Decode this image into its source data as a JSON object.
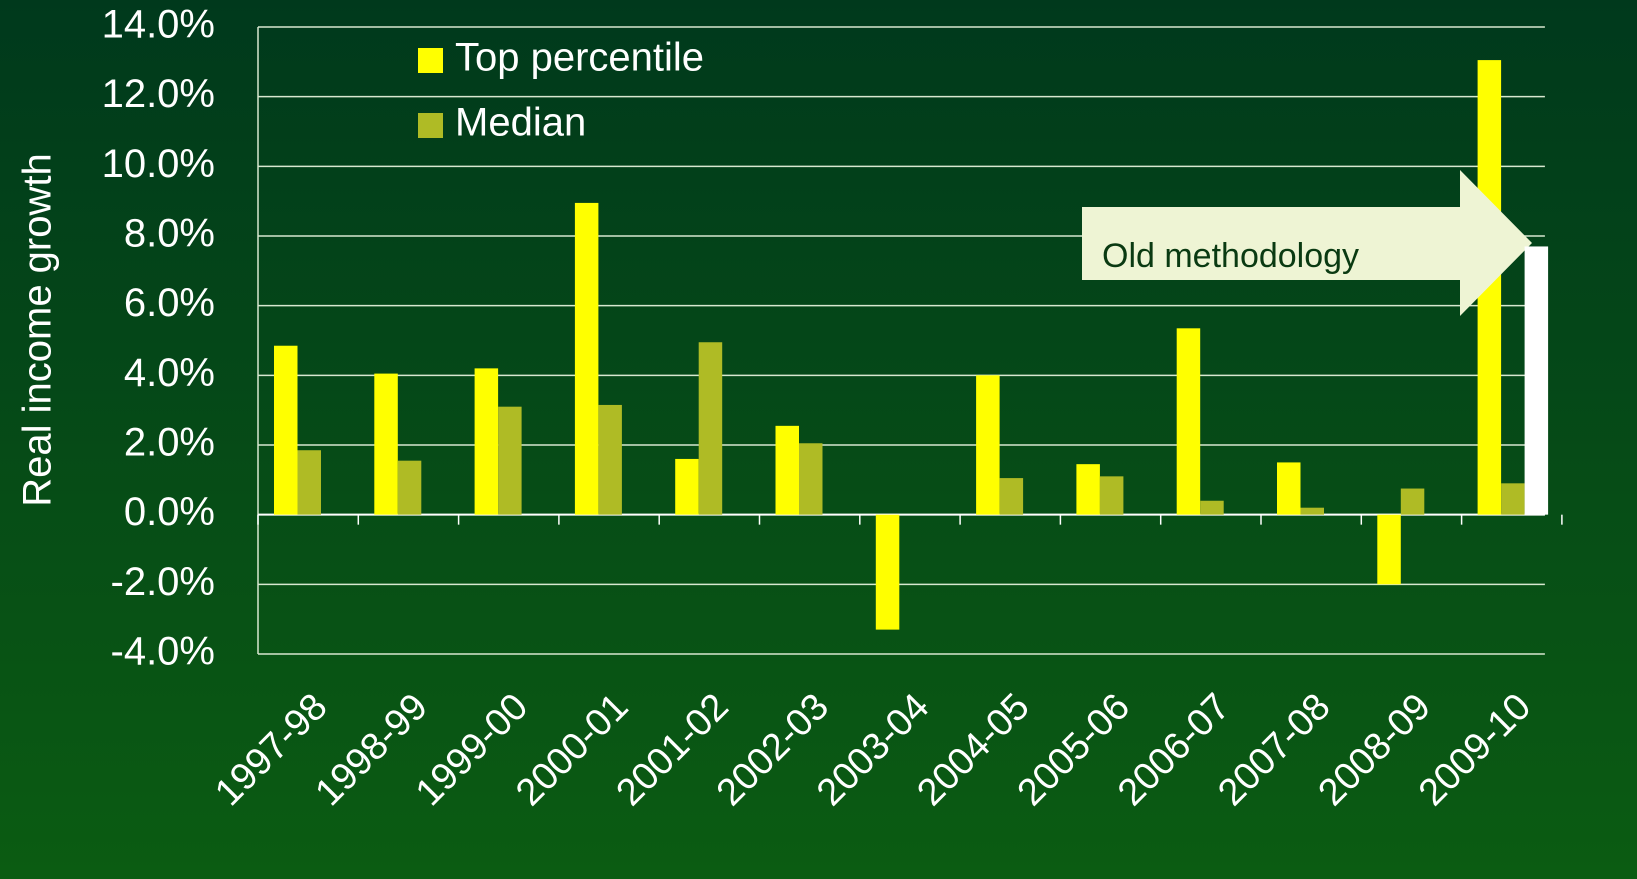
{
  "chart_data": {
    "type": "bar",
    "y_label": "Real income growth",
    "categories": [
      "1997-98",
      "1998-99",
      "1999-00",
      "2000-01",
      "2001-02",
      "2002-03",
      "2003-04",
      "2004-05",
      "2005-06",
      "2006-07",
      "2007-08",
      "2008-09",
      "2009-10"
    ],
    "series": [
      {
        "name": "Top percentile",
        "color": "#ffff00",
        "values": [
          4.85,
          4.05,
          4.2,
          8.95,
          1.6,
          2.55,
          -3.3,
          4.0,
          1.45,
          5.35,
          1.5,
          -2.0,
          13.05
        ]
      },
      {
        "name": "Median",
        "color": "#afbb25",
        "values": [
          1.85,
          1.55,
          3.1,
          3.15,
          4.95,
          2.05,
          0.0,
          1.05,
          1.1,
          0.4,
          0.2,
          0.75,
          0.9
        ]
      }
    ],
    "annotation": {
      "text": "Old methodology",
      "category": "2009-10",
      "value": 7.7,
      "color": "#ffffff"
    },
    "ylim": [
      -4,
      14
    ],
    "yticks": [
      {
        "value": -4,
        "label": "-4.0%"
      },
      {
        "value": -2,
        "label": "-2.0%"
      },
      {
        "value": 0,
        "label": "0.0%"
      },
      {
        "value": 2,
        "label": "2.0%"
      },
      {
        "value": 4,
        "label": "4.0%"
      },
      {
        "value": 6,
        "label": "6.0%"
      },
      {
        "value": 8,
        "label": "8.0%"
      },
      {
        "value": 10,
        "label": "10.0%"
      },
      {
        "value": 12,
        "label": "12.0%"
      },
      {
        "value": 14,
        "label": "14.0%"
      }
    ],
    "grid": true,
    "legend": "top-left"
  }
}
